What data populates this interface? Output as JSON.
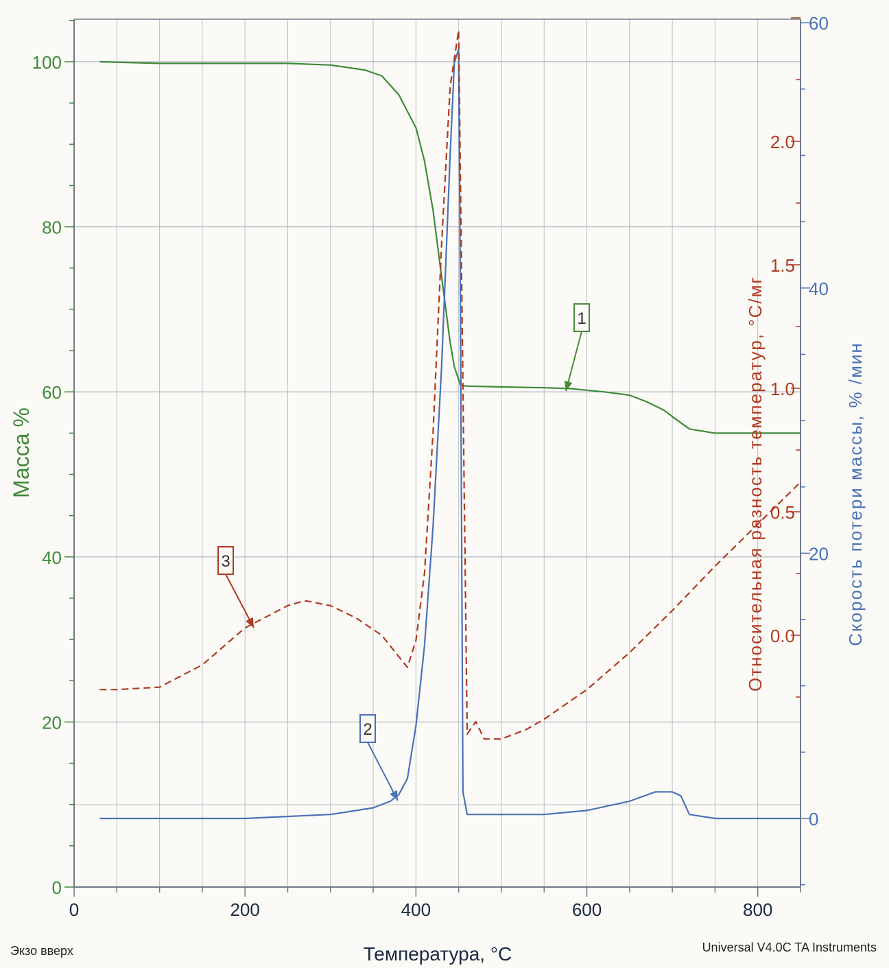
{
  "colors": {
    "mass": "#3f8a3a",
    "rate": "#4a72b8",
    "dta": "#b03a22",
    "frame": "#6e7a88",
    "grid": "#b9bfc6",
    "callout": "#4a8a3a"
  },
  "chart_data": {
    "type": "line",
    "x_axis": {
      "label": "Температура,  °С",
      "range": [
        0,
        850
      ],
      "ticks": [
        0,
        200,
        400,
        600,
        800
      ],
      "tick_labels": [
        "0",
        "200",
        "400",
        "600",
        "800"
      ]
    },
    "y_left": {
      "label": "Масса  %",
      "range": [
        0,
        100
      ],
      "ticks": [
        0,
        20,
        40,
        60,
        80,
        100
      ],
      "tick_labels": [
        "0",
        "20",
        "40",
        "60",
        "80",
        "100"
      ]
    },
    "y_right_dta": {
      "label": "Относительная разность температур,  °С/мг",
      "ticks": [
        0.0,
        0.5,
        1.0,
        1.5,
        2.0
      ],
      "tick_labels": [
        "0.0",
        "0.5",
        "1.0",
        "1.5",
        "2.0"
      ]
    },
    "y_right_rate": {
      "label": "Скорость потери массы,  % /мин",
      "range": [
        0,
        60
      ],
      "ticks": [
        0,
        20,
        40,
        60
      ],
      "tick_labels": [
        "0",
        "20",
        "40",
        "60"
      ]
    },
    "grid": true,
    "series": [
      {
        "axis": "mass",
        "label": "1",
        "x": [
          30,
          100,
          150,
          200,
          250,
          300,
          320,
          340,
          360,
          380,
          400,
          410,
          420,
          430,
          440,
          445,
          450,
          452,
          460,
          500,
          550,
          580,
          600,
          620,
          650,
          670,
          690,
          700,
          720,
          750,
          800,
          850
        ],
        "y": [
          100,
          99.8,
          99.8,
          99.8,
          99.8,
          99.6,
          99.3,
          99,
          98.3,
          96,
          92,
          88,
          82,
          74,
          66,
          63,
          61.5,
          60.8,
          60.7,
          60.6,
          60.5,
          60.4,
          60.2,
          60,
          59.6,
          58.8,
          57.8,
          57,
          55.5,
          55,
          55,
          55
        ]
      },
      {
        "axis": "rate",
        "label": "2",
        "x": [
          30,
          100,
          200,
          300,
          350,
          370,
          380,
          390,
          400,
          410,
          420,
          425,
          430,
          435,
          440,
          445,
          450,
          452,
          455,
          460,
          470,
          500,
          550,
          600,
          650,
          680,
          700,
          710,
          720,
          750,
          800,
          850
        ],
        "y": [
          0,
          0,
          0,
          0.3,
          0.8,
          1.3,
          1.8,
          3,
          7,
          13,
          22,
          28,
          34,
          42,
          50,
          57,
          58,
          40,
          2,
          0.3,
          0.3,
          0.3,
          0.3,
          0.6,
          1.3,
          2,
          2,
          1.7,
          0.3,
          0,
          0,
          0
        ]
      },
      {
        "axis": "dta",
        "label": "3",
        "x": [
          30,
          50,
          100,
          150,
          200,
          250,
          270,
          300,
          330,
          360,
          390,
          400,
          410,
          420,
          430,
          440,
          450,
          455,
          460,
          470,
          480,
          500,
          530,
          550,
          600,
          650,
          700,
          750,
          800,
          850
        ],
        "y": [
          -0.22,
          -0.22,
          -0.21,
          -0.12,
          0.03,
          0.12,
          0.14,
          0.12,
          0.07,
          0.0,
          -0.13,
          -0.02,
          0.25,
          0.82,
          1.58,
          2.22,
          2.45,
          1.0,
          -0.4,
          -0.35,
          -0.42,
          -0.42,
          -0.38,
          -0.34,
          -0.22,
          -0.07,
          0.1,
          0.28,
          0.45,
          0.62
        ]
      }
    ],
    "annotations": [
      {
        "text": "1"
      },
      {
        "text": "2"
      },
      {
        "text": "3"
      }
    ]
  },
  "footer": {
    "left": "Экзо вверх",
    "right": "Universal V4.0C TA Instruments"
  }
}
